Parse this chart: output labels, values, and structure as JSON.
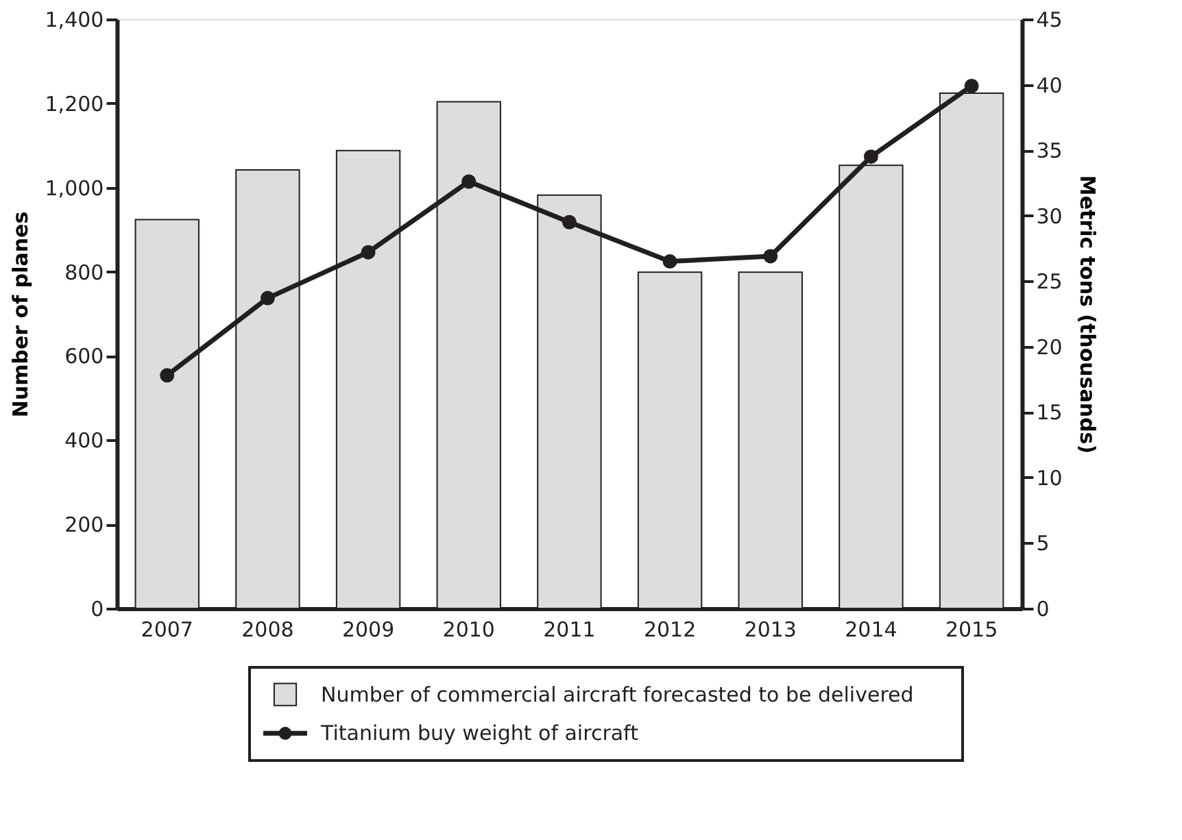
{
  "chart_data": {
    "type": "bar",
    "categories": [
      "2007",
      "2008",
      "2009",
      "2010",
      "2011",
      "2012",
      "2013",
      "2014",
      "2015"
    ],
    "ylabel": "Number of planes",
    "y2label": "Metric tons (thousands)",
    "ylim": [
      0,
      1400
    ],
    "yticks": [
      0,
      {
        "value": 200,
        "label": "200"
      },
      {
        "value": 400,
        "label": "400"
      },
      {
        "value": 600,
        "label": "600"
      },
      {
        "value": 800,
        "label": "800"
      },
      {
        "value": 1000,
        "label": "1,000"
      },
      {
        "value": 1200,
        "label": "1,200"
      },
      {
        "value": 1400,
        "label": "1,400"
      }
    ],
    "y2lim": [
      0,
      45
    ],
    "y2ticks": [
      0,
      5,
      10,
      15,
      20,
      25,
      30,
      35,
      40,
      45
    ],
    "series": [
      {
        "name": "Number of commercial aircraft forecasted to be delivered",
        "color": "#dcdddf",
        "values": [
          924,
          1042,
          1088,
          1204,
          982,
          799,
          799,
          1053,
          1224
        ]
      },
      {
        "name": "Titanium buy weight of aircraft",
        "type": "line",
        "axis": "y2",
        "color": "#231f20",
        "marker": "circle",
        "line_style": "solid",
        "values": [
          17.8,
          23.7,
          27.2,
          32.6,
          29.5,
          26.5,
          26.9,
          34.5,
          39.9
        ]
      }
    ],
    "grid": false,
    "legend": "bottom"
  }
}
